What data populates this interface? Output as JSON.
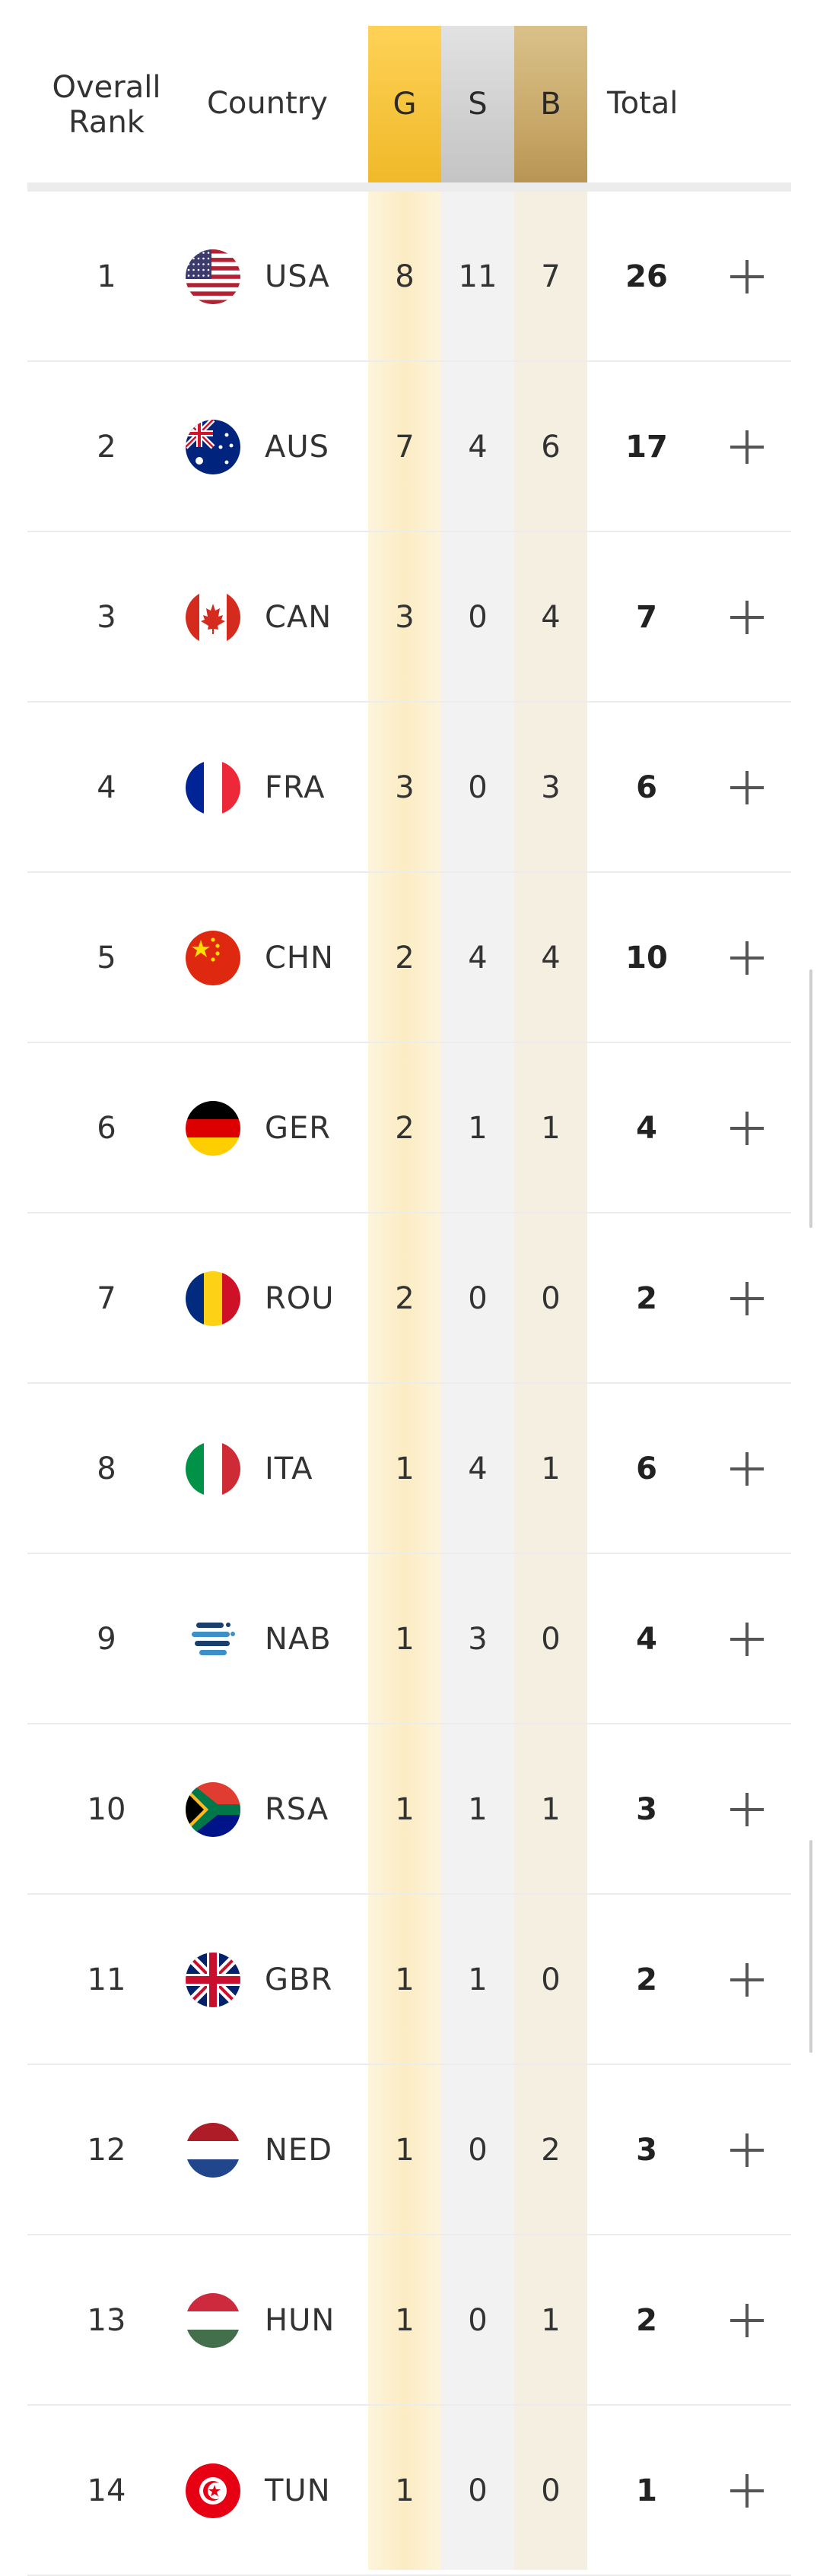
{
  "header": {
    "rank_label": "Overall Rank",
    "country_label": "Country",
    "gold_label": "G",
    "silver_label": "S",
    "bronze_label": "B",
    "total_label": "Total"
  },
  "colors": {
    "gold": "#f5c33b",
    "silver": "#cfcfcf",
    "bronze": "#c9a96a"
  },
  "rows": [
    {
      "rank": "1",
      "flag": "usa-flag-icon",
      "code": "USA",
      "g": "8",
      "s": "11",
      "b": "7",
      "total": "26"
    },
    {
      "rank": "2",
      "flag": "aus-flag-icon",
      "code": "AUS",
      "g": "7",
      "s": "4",
      "b": "6",
      "total": "17"
    },
    {
      "rank": "3",
      "flag": "can-flag-icon",
      "code": "CAN",
      "g": "3",
      "s": "0",
      "b": "4",
      "total": "7"
    },
    {
      "rank": "4",
      "flag": "fra-flag-icon",
      "code": "FRA",
      "g": "3",
      "s": "0",
      "b": "3",
      "total": "6"
    },
    {
      "rank": "5",
      "flag": "chn-flag-icon",
      "code": "CHN",
      "g": "2",
      "s": "4",
      "b": "4",
      "total": "10"
    },
    {
      "rank": "6",
      "flag": "ger-flag-icon",
      "code": "GER",
      "g": "2",
      "s": "1",
      "b": "1",
      "total": "4"
    },
    {
      "rank": "7",
      "flag": "rou-flag-icon",
      "code": "ROU",
      "g": "2",
      "s": "0",
      "b": "0",
      "total": "2"
    },
    {
      "rank": "8",
      "flag": "ita-flag-icon",
      "code": "ITA",
      "g": "1",
      "s": "4",
      "b": "1",
      "total": "6"
    },
    {
      "rank": "9",
      "flag": "nab-flag-icon",
      "code": "NAB",
      "g": "1",
      "s": "3",
      "b": "0",
      "total": "4"
    },
    {
      "rank": "10",
      "flag": "rsa-flag-icon",
      "code": "RSA",
      "g": "1",
      "s": "1",
      "b": "1",
      "total": "3"
    },
    {
      "rank": "11",
      "flag": "gbr-flag-icon",
      "code": "GBR",
      "g": "1",
      "s": "1",
      "b": "0",
      "total": "2"
    },
    {
      "rank": "12",
      "flag": "ned-flag-icon",
      "code": "NED",
      "g": "1",
      "s": "0",
      "b": "2",
      "total": "3"
    },
    {
      "rank": "13",
      "flag": "hun-flag-icon",
      "code": "HUN",
      "g": "1",
      "s": "0",
      "b": "1",
      "total": "2"
    },
    {
      "rank": "14",
      "flag": "tun-flag-icon",
      "code": "TUN",
      "g": "1",
      "s": "0",
      "b": "0",
      "total": "1"
    }
  ]
}
